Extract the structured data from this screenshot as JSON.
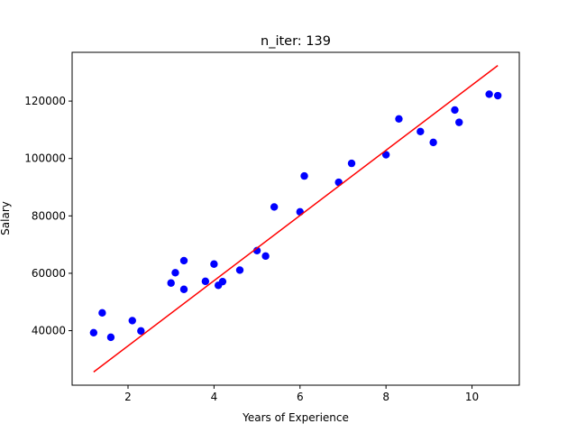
{
  "chart_data": {
    "type": "scatter",
    "title": "n_iter: 139",
    "xlabel": "Years of Experience",
    "ylabel": "Salary",
    "xlim": [
      0.7,
      11.1
    ],
    "ylim": [
      21000,
      137000
    ],
    "xticks": [
      2,
      4,
      6,
      8,
      10
    ],
    "yticks": [
      40000,
      60000,
      80000,
      100000,
      120000
    ],
    "xtick_labels": [
      "2",
      "4",
      "6",
      "8",
      "10"
    ],
    "ytick_labels": [
      "40000",
      "60000",
      "80000",
      "100000",
      "120000"
    ],
    "grid": false,
    "series": [
      {
        "type": "scatter",
        "color": "#0000ff",
        "points": [
          [
            1.2,
            39300
          ],
          [
            1.4,
            46200
          ],
          [
            1.6,
            37700
          ],
          [
            2.1,
            43500
          ],
          [
            2.3,
            39900
          ],
          [
            3.0,
            56600
          ],
          [
            3.1,
            60200
          ],
          [
            3.3,
            54400
          ],
          [
            3.3,
            64400
          ],
          [
            3.8,
            57200
          ],
          [
            4.0,
            63200
          ],
          [
            4.1,
            55800
          ],
          [
            4.2,
            57100
          ],
          [
            4.6,
            61100
          ],
          [
            5.0,
            67900
          ],
          [
            5.2,
            66000
          ],
          [
            5.4,
            83100
          ],
          [
            6.0,
            81400
          ],
          [
            6.1,
            93900
          ],
          [
            6.9,
            91700
          ],
          [
            7.2,
            98300
          ],
          [
            8.0,
            101300
          ],
          [
            8.3,
            113800
          ],
          [
            8.8,
            109400
          ],
          [
            9.1,
            105600
          ],
          [
            9.6,
            116900
          ],
          [
            9.7,
            112600
          ],
          [
            10.4,
            122400
          ],
          [
            10.6,
            121900
          ]
        ]
      },
      {
        "type": "line",
        "color": "#ff0000",
        "points": [
          [
            1.2,
            25600
          ],
          [
            10.6,
            132400
          ]
        ]
      }
    ]
  }
}
